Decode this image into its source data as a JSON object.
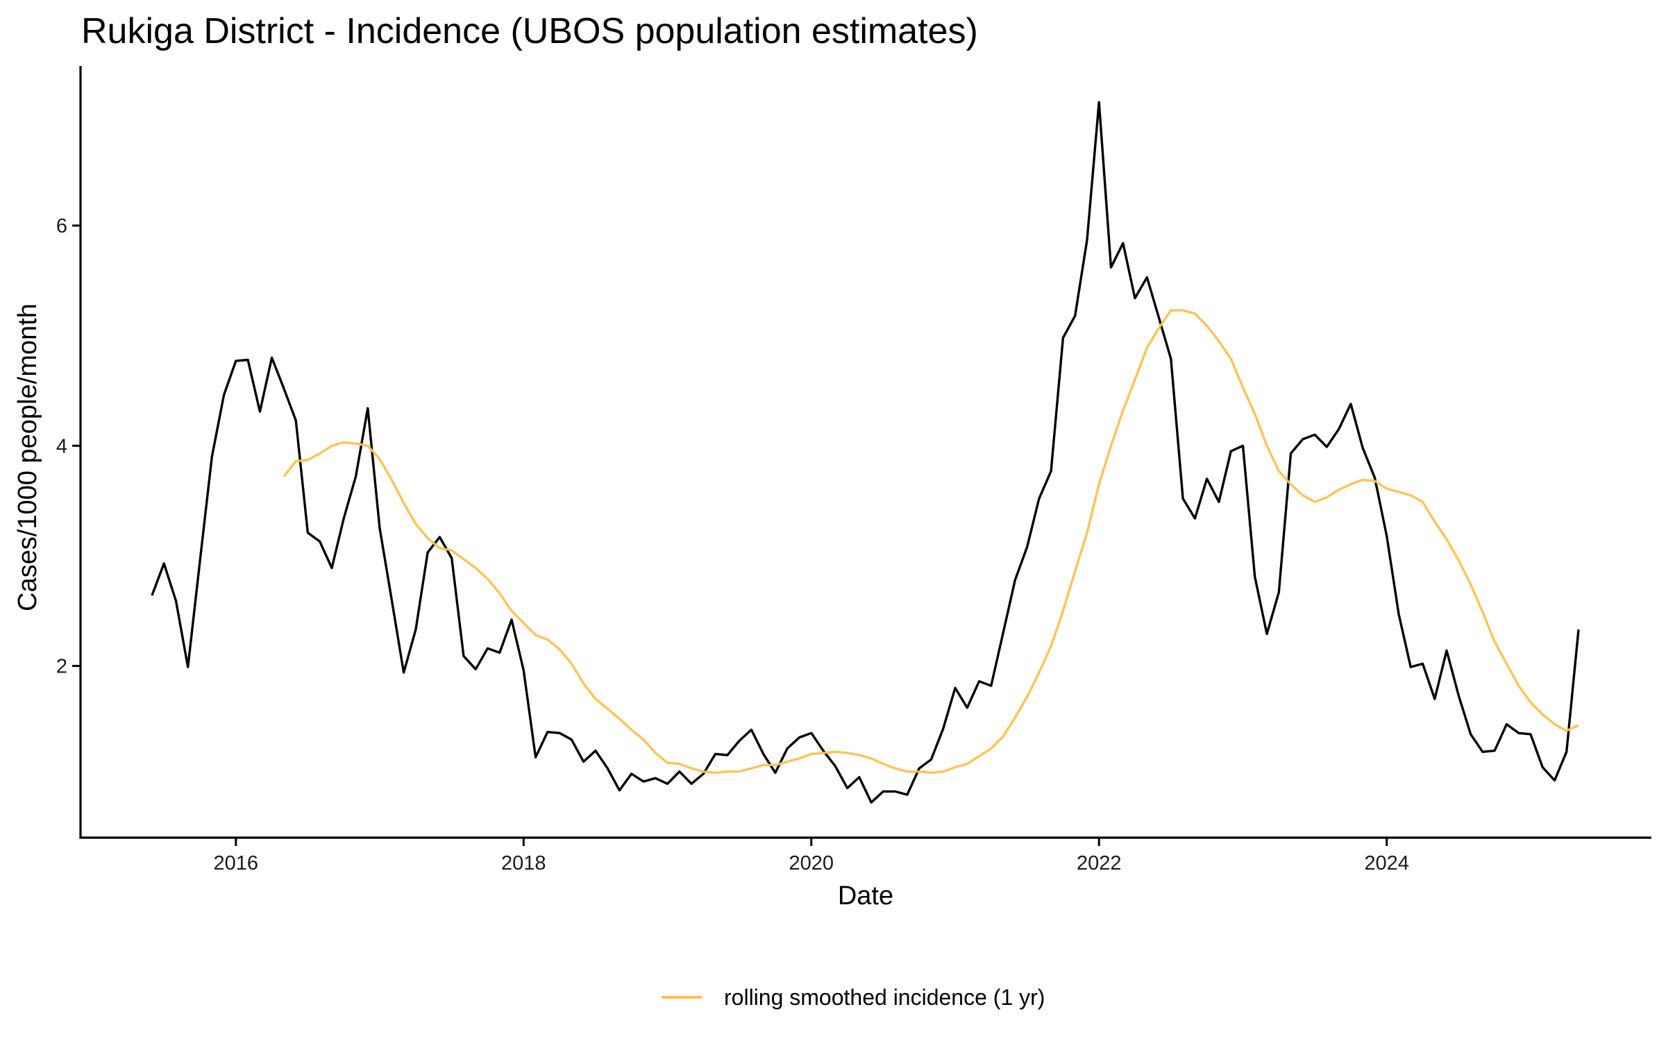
{
  "chart_data": {
    "type": "line",
    "title": "Rukiga District - Incidence (UBOS population estimates)",
    "xlabel": "Date",
    "ylabel": "Cases/1000 people/month",
    "xlim": [
      2014.92,
      2025.84
    ],
    "ylim": [
      0.44,
      7.45
    ],
    "x_ticks": [
      2016,
      2018,
      2020,
      2022,
      2024
    ],
    "x_tick_labels": [
      "2016",
      "2018",
      "2020",
      "2022",
      "2024"
    ],
    "y_ticks": [
      2,
      4,
      6
    ],
    "y_tick_labels": [
      "2",
      "4",
      "6"
    ],
    "grid": false,
    "legend": {
      "position": "bottom",
      "entries": [
        "rolling smoothed incidence (1 yr)"
      ]
    },
    "x_start": "2015-06",
    "x_step": "1 month",
    "series": [
      {
        "name": "incidence",
        "color": "#000000",
        "in_legend": false,
        "values": [
          2.64,
          2.93,
          2.59,
          1.99,
          2.95,
          3.9,
          4.46,
          4.77,
          4.78,
          4.31,
          4.8,
          4.52,
          4.23,
          3.21,
          3.13,
          2.89,
          3.34,
          3.72,
          4.34,
          3.25,
          2.6,
          1.94,
          2.33,
          3.03,
          3.17,
          2.98,
          2.09,
          1.97,
          2.16,
          2.12,
          2.42,
          1.96,
          1.17,
          1.4,
          1.39,
          1.33,
          1.13,
          1.23,
          1.07,
          0.87,
          1.02,
          0.95,
          0.98,
          0.93,
          1.04,
          0.93,
          1.02,
          1.2,
          1.19,
          1.32,
          1.42,
          1.2,
          1.03,
          1.25,
          1.35,
          1.39,
          1.23,
          1.09,
          0.89,
          0.99,
          0.76,
          0.86,
          0.86,
          0.83,
          1.07,
          1.15,
          1.43,
          1.8,
          1.62,
          1.86,
          1.82,
          2.3,
          2.78,
          3.08,
          3.52,
          3.77,
          4.98,
          5.18,
          5.87,
          7.12,
          5.62,
          5.84,
          5.34,
          5.53,
          5.16,
          4.79,
          3.52,
          3.34,
          3.7,
          3.49,
          3.95,
          4.0,
          2.81,
          2.29,
          2.67,
          3.93,
          4.06,
          4.1,
          3.99,
          4.15,
          4.38,
          3.98,
          3.71,
          3.18,
          2.47,
          1.99,
          2.02,
          1.7,
          2.14,
          1.73,
          1.38,
          1.22,
          1.23,
          1.47,
          1.39,
          1.38,
          1.08,
          0.96,
          1.22,
          2.33
        ]
      },
      {
        "name": "rolling smoothed incidence (1 yr)",
        "color": "#FFC04D",
        "in_legend": true,
        "values": [
          null,
          null,
          null,
          null,
          null,
          null,
          null,
          null,
          null,
          null,
          null,
          3.72,
          3.86,
          3.87,
          3.93,
          4.0,
          4.03,
          4.02,
          4.0,
          3.88,
          3.69,
          3.48,
          3.29,
          3.16,
          3.07,
          3.05,
          2.97,
          2.89,
          2.79,
          2.66,
          2.5,
          2.39,
          2.28,
          2.24,
          2.15,
          2.02,
          1.84,
          1.7,
          1.61,
          1.52,
          1.42,
          1.33,
          1.21,
          1.12,
          1.11,
          1.07,
          1.04,
          1.03,
          1.04,
          1.04,
          1.07,
          1.1,
          1.1,
          1.13,
          1.16,
          1.2,
          1.21,
          1.22,
          1.21,
          1.19,
          1.16,
          1.11,
          1.07,
          1.04,
          1.04,
          1.03,
          1.04,
          1.08,
          1.11,
          1.18,
          1.25,
          1.36,
          1.53,
          1.72,
          1.94,
          2.18,
          2.5,
          2.86,
          3.21,
          3.65,
          4.0,
          4.32,
          4.6,
          4.89,
          5.07,
          5.23,
          5.23,
          5.2,
          5.09,
          4.95,
          4.79,
          4.53,
          4.29,
          4.0,
          3.77,
          3.65,
          3.55,
          3.49,
          3.53,
          3.6,
          3.65,
          3.69,
          3.68,
          3.61,
          3.58,
          3.55,
          3.49,
          3.31,
          3.15,
          2.96,
          2.74,
          2.49,
          2.22,
          2.02,
          1.82,
          1.67,
          1.56,
          1.47,
          1.41,
          1.46
        ]
      }
    ]
  }
}
